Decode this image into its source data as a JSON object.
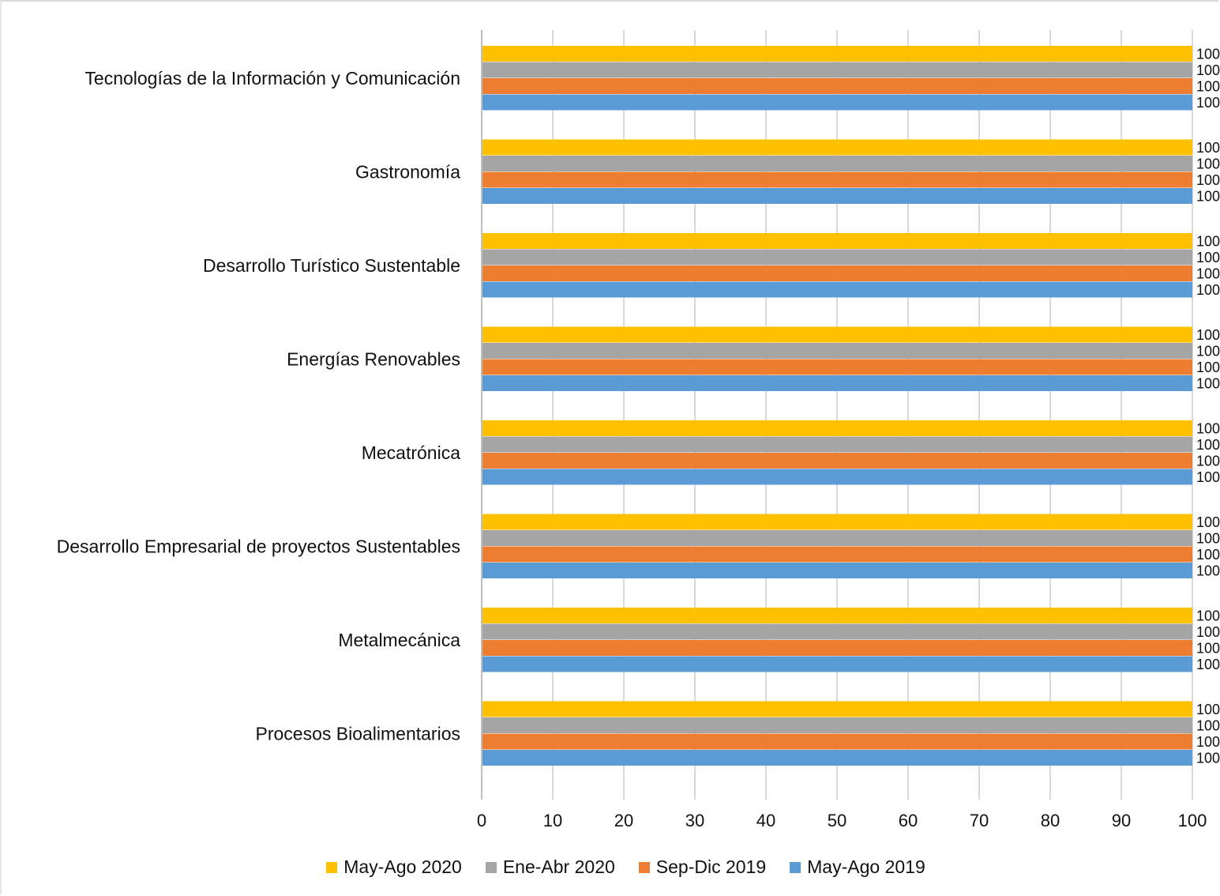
{
  "chart_data": {
    "type": "bar",
    "orientation": "horizontal",
    "categories": [
      "Tecnologías de la Información y Comunicación",
      "Gastronomía",
      "Desarrollo Turístico Sustentable",
      "Energías Renovables",
      "Mecatrónica",
      "Desarrollo Empresarial de proyectos Sustentables",
      "Metalmecánica",
      "Procesos Bioalimentarios"
    ],
    "series": [
      {
        "name": "May-Ago 2020",
        "color": "#FFC000",
        "values": [
          100,
          100,
          100,
          100,
          100,
          100,
          100,
          100
        ]
      },
      {
        "name": "Ene-Abr 2020",
        "color": "#A5A5A5",
        "values": [
          100,
          100,
          100,
          100,
          100,
          100,
          100,
          100
        ]
      },
      {
        "name": "Sep-Dic 2019",
        "color": "#ED7D31",
        "values": [
          100,
          100,
          100,
          100,
          100,
          100,
          100,
          100
        ]
      },
      {
        "name": "May-Ago 2019",
        "color": "#5B9BD5",
        "values": [
          100,
          100,
          100,
          100,
          100,
          100,
          100,
          100
        ]
      }
    ],
    "xlim": [
      0,
      100
    ],
    "xticks": [
      "0",
      "10",
      "20",
      "30",
      "40",
      "50",
      "60",
      "70",
      "80",
      "90",
      "100"
    ],
    "data_label_text": "100",
    "grid": true,
    "legend_position": "bottom"
  }
}
